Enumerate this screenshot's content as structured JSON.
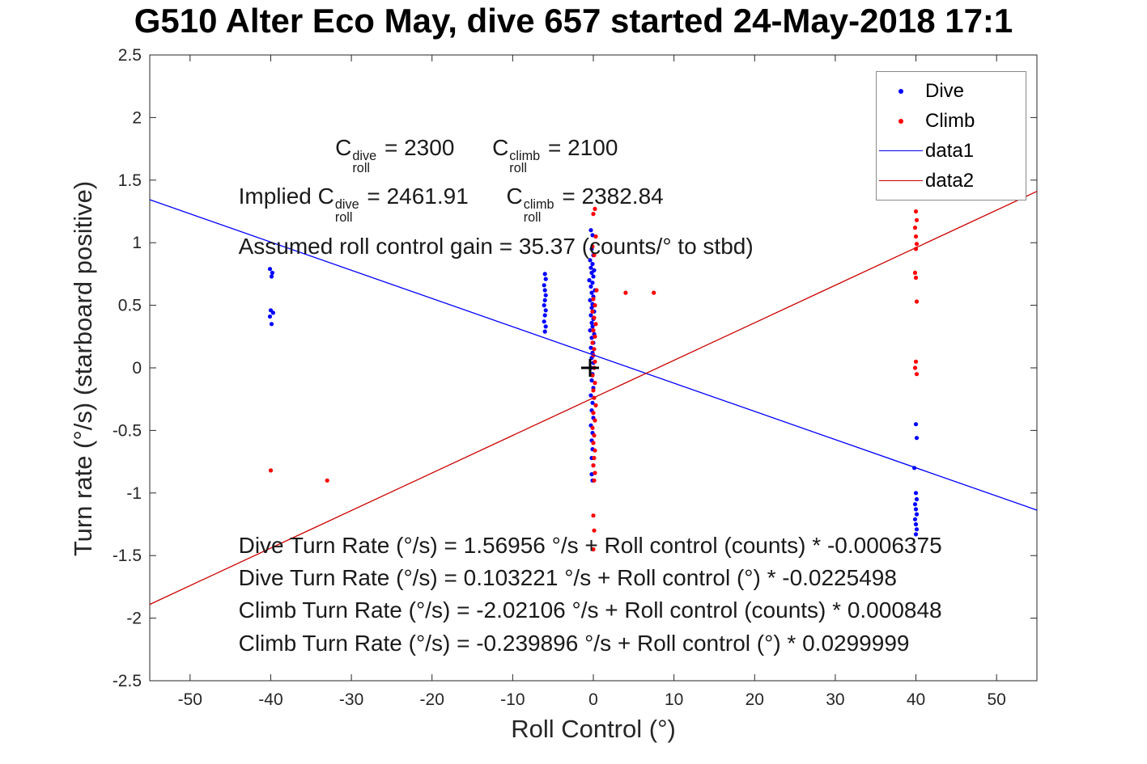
{
  "title": "G510 Alter Eco May, dive 657 started 24-May-2018 17:1",
  "chart_data": {
    "type": "scatter",
    "xlabel": "Roll Control (°)",
    "ylabel": "Turn rate (°/s) (starboard positive)",
    "xlim": [
      -55,
      55
    ],
    "ylim": [
      -2.5,
      2.5
    ],
    "grid": false,
    "legend_position": "top-right",
    "xticks": [
      -50,
      -40,
      -30,
      -20,
      -10,
      0,
      10,
      20,
      30,
      40,
      50
    ],
    "xtick_labels": [
      "-50",
      "-40",
      "-30",
      "-20",
      "-10",
      "0",
      "10",
      "20",
      "30",
      "40",
      "50"
    ],
    "yticks": [
      2.5,
      2,
      1.5,
      1,
      0.5,
      0,
      -0.5,
      -1,
      -1.5,
      -2,
      -2.5
    ],
    "ytick_labels": [
      "2.5",
      "2",
      "1.5",
      "1",
      "0.5",
      "0",
      "-0.5",
      "-1",
      "-1.5",
      "-2",
      "-2.5"
    ],
    "legend": [
      {
        "label": "Dive",
        "type": "dot",
        "color": "#0000ff"
      },
      {
        "label": "Climb",
        "type": "dot",
        "color": "#ff0000"
      },
      {
        "label": "data1",
        "type": "line",
        "color": "#0000ff"
      },
      {
        "label": "data2",
        "type": "line",
        "color": "#cc0000"
      }
    ],
    "series": [
      {
        "name": "Dive",
        "marker": "dot",
        "color": "#0000ff",
        "points": [
          [
            -40.1,
            0.79
          ],
          [
            -39.8,
            0.76
          ],
          [
            -39.9,
            0.73
          ],
          [
            -40.0,
            0.46
          ],
          [
            -39.7,
            0.44
          ],
          [
            -40.1,
            0.41
          ],
          [
            -39.9,
            0.35
          ],
          [
            -6.0,
            0.75
          ],
          [
            -5.9,
            0.71
          ],
          [
            -6.1,
            0.66
          ],
          [
            -6.0,
            0.62
          ],
          [
            -5.9,
            0.58
          ],
          [
            -6.0,
            0.54
          ],
          [
            -6.1,
            0.5
          ],
          [
            -5.9,
            0.46
          ],
          [
            -6.0,
            0.42
          ],
          [
            -6.1,
            0.37
          ],
          [
            -5.9,
            0.33
          ],
          [
            -6.0,
            0.29
          ],
          [
            -0.3,
            1.1
          ],
          [
            -0.1,
            1.06
          ],
          [
            -0.2,
            0.95
          ],
          [
            0.0,
            0.9
          ],
          [
            -0.4,
            0.86
          ],
          [
            -0.1,
            0.83
          ],
          [
            -0.3,
            0.8
          ],
          [
            0.1,
            0.78
          ],
          [
            -0.2,
            0.76
          ],
          [
            0.0,
            0.73
          ],
          [
            -0.5,
            0.7
          ],
          [
            -0.1,
            0.68
          ],
          [
            -0.3,
            0.65
          ],
          [
            0.2,
            0.62
          ],
          [
            -0.2,
            0.6
          ],
          [
            0.0,
            0.57
          ],
          [
            -0.4,
            0.54
          ],
          [
            -0.1,
            0.51
          ],
          [
            -0.2,
            0.48
          ],
          [
            0.1,
            0.45
          ],
          [
            -0.3,
            0.42
          ],
          [
            0.0,
            0.39
          ],
          [
            -0.2,
            0.36
          ],
          [
            -0.1,
            0.33
          ],
          [
            -0.4,
            0.3
          ],
          [
            0.1,
            0.27
          ],
          [
            -0.2,
            0.24
          ],
          [
            0.0,
            0.2
          ],
          [
            -0.3,
            0.16
          ],
          [
            -0.1,
            0.12
          ],
          [
            -0.2,
            0.08
          ],
          [
            0.0,
            0.04
          ],
          [
            -0.3,
            0.0
          ],
          [
            -0.1,
            -0.05
          ],
          [
            -0.2,
            -0.1
          ],
          [
            0.0,
            -0.16
          ],
          [
            -0.3,
            -0.22
          ],
          [
            -0.1,
            -0.28
          ],
          [
            -0.2,
            -0.34
          ],
          [
            0.0,
            -0.4
          ],
          [
            -0.3,
            -0.46
          ],
          [
            -0.1,
            -0.52
          ],
          [
            -0.2,
            -0.58
          ],
          [
            -0.1,
            -0.65
          ],
          [
            -0.2,
            -0.72
          ],
          [
            0.0,
            -0.78
          ],
          [
            -0.2,
            -0.85
          ],
          [
            -0.1,
            -0.9
          ],
          [
            40.0,
            -0.45
          ],
          [
            40.1,
            -0.56
          ],
          [
            39.8,
            -0.8
          ],
          [
            40.0,
            -1.0
          ],
          [
            40.1,
            -1.05
          ],
          [
            39.9,
            -1.09
          ],
          [
            40.0,
            -1.13
          ],
          [
            40.1,
            -1.17
          ],
          [
            39.9,
            -1.21
          ],
          [
            40.0,
            -1.25
          ],
          [
            40.1,
            -1.29
          ],
          [
            40.0,
            -1.33
          ]
        ]
      },
      {
        "name": "Climb",
        "marker": "dot",
        "color": "#ff0000",
        "points": [
          [
            -40.0,
            -0.82
          ],
          [
            -33.0,
            -0.9
          ],
          [
            0.2,
            1.27
          ],
          [
            0.0,
            1.23
          ],
          [
            0.3,
            1.05
          ],
          [
            -0.1,
            0.97
          ],
          [
            0.1,
            0.9
          ],
          [
            0.4,
            0.62
          ],
          [
            4.0,
            0.6
          ],
          [
            7.5,
            0.6
          ],
          [
            0.0,
            0.55
          ],
          [
            0.2,
            0.5
          ],
          [
            -0.1,
            0.45
          ],
          [
            0.1,
            0.4
          ],
          [
            0.3,
            0.35
          ],
          [
            0.0,
            0.3
          ],
          [
            0.2,
            0.25
          ],
          [
            -0.1,
            0.2
          ],
          [
            0.1,
            0.15
          ],
          [
            0.0,
            0.1
          ],
          [
            0.2,
            0.05
          ],
          [
            0.1,
            0.0
          ],
          [
            -0.1,
            -0.06
          ],
          [
            0.2,
            -0.12
          ],
          [
            0.0,
            -0.18
          ],
          [
            0.1,
            -0.24
          ],
          [
            0.3,
            -0.3
          ],
          [
            0.0,
            -0.36
          ],
          [
            0.2,
            -0.42
          ],
          [
            -0.1,
            -0.48
          ],
          [
            0.1,
            -0.54
          ],
          [
            0.0,
            -0.6
          ],
          [
            0.2,
            -0.66
          ],
          [
            0.1,
            -0.72
          ],
          [
            0.0,
            -0.78
          ],
          [
            0.2,
            -0.84
          ],
          [
            0.1,
            -0.9
          ],
          [
            0.0,
            -1.18
          ],
          [
            0.1,
            -1.3
          ],
          [
            0.0,
            -1.45
          ],
          [
            40.0,
            1.25
          ],
          [
            40.1,
            1.18
          ],
          [
            39.9,
            1.12
          ],
          [
            40.0,
            1.05
          ],
          [
            40.1,
            0.99
          ],
          [
            40.0,
            0.95
          ],
          [
            39.9,
            0.76
          ],
          [
            40.0,
            0.72
          ],
          [
            40.1,
            0.53
          ],
          [
            40.0,
            0.05
          ],
          [
            39.9,
            0.0
          ],
          [
            40.1,
            -0.05
          ]
        ]
      }
    ],
    "fit_lines": [
      {
        "name": "data1",
        "color": "#0000ff",
        "slope": -0.0225498,
        "intercept": 0.103221
      },
      {
        "name": "data2",
        "color": "#cc0000",
        "slope": 0.0299999,
        "intercept": -0.239896
      }
    ],
    "origin_marker": {
      "x": -0.4,
      "y": 0,
      "symbol": "+",
      "color": "#000000"
    },
    "annotations": [
      {
        "name": "c-roll-constants",
        "x": -32,
        "y": 1.7,
        "segments": [
          {
            "t": "C"
          },
          {
            "sup": "dive",
            "sub": "roll"
          },
          {
            "t": " = 2300      "
          },
          {
            "t": "C"
          },
          {
            "sup": "climb",
            "sub": "roll"
          },
          {
            "t": " = 2100"
          }
        ]
      },
      {
        "name": "implied-c-roll",
        "x": -44,
        "y": 1.31,
        "segments": [
          {
            "t": "Implied C"
          },
          {
            "sup": "dive",
            "sub": "roll"
          },
          {
            "t": " = 2461.91      "
          },
          {
            "t": "C"
          },
          {
            "sup": "climb",
            "sub": "roll"
          },
          {
            "t": " = 2382.84"
          }
        ]
      },
      {
        "name": "assumed-gain",
        "x": -44,
        "y": 0.97,
        "segments": [
          {
            "t": "Assumed roll control gain = 35.37 (counts/° to stbd)"
          }
        ]
      },
      {
        "name": "dive-eq-counts",
        "x": -44,
        "y": -1.42,
        "segments": [
          {
            "t": "Dive Turn Rate (°/s) = 1.56956 °/s + Roll control (counts) * -0.0006375"
          }
        ]
      },
      {
        "name": "dive-eq-degrees",
        "x": -44,
        "y": -1.68,
        "segments": [
          {
            "t": "Dive Turn Rate (°/s) = 0.103221 °/s + Roll control (°) * -0.0225498"
          }
        ]
      },
      {
        "name": "climb-eq-counts",
        "x": -44,
        "y": -1.94,
        "segments": [
          {
            "t": "Climb Turn Rate (°/s) = -2.02106 °/s + Roll control (counts) * 0.000848"
          }
        ]
      },
      {
        "name": "climb-eq-degrees",
        "x": -44,
        "y": -2.2,
        "segments": [
          {
            "t": "Climb Turn Rate (°/s) = -0.239896 °/s + Roll control (°) * 0.0299999"
          }
        ]
      }
    ]
  }
}
